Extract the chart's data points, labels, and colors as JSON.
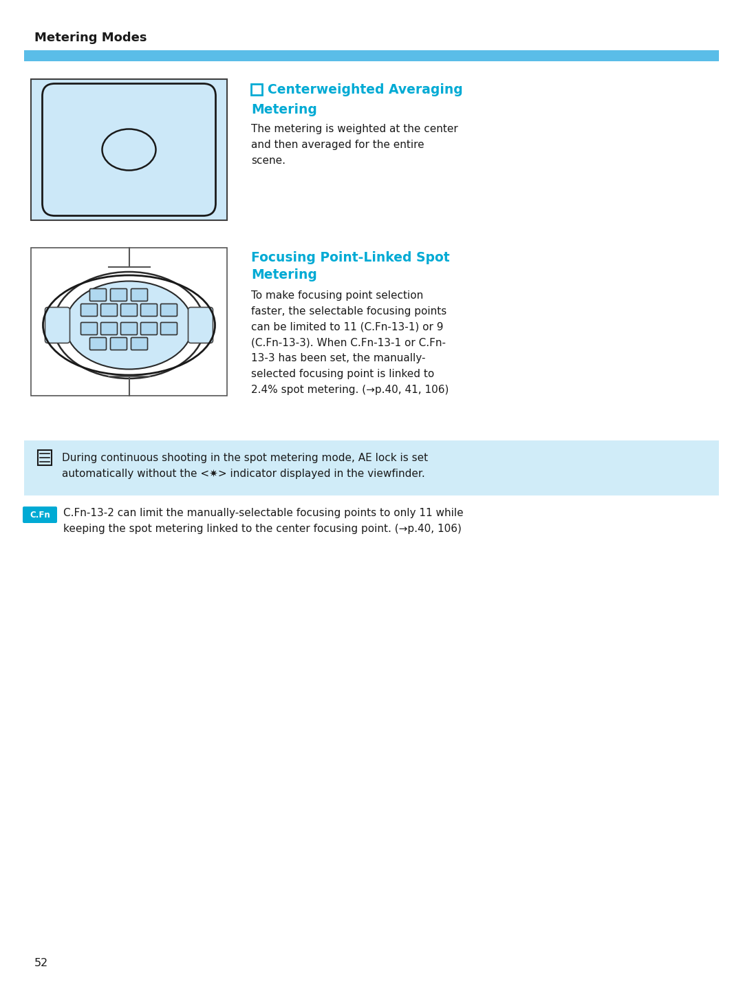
{
  "page_bg": "#ffffff",
  "header_title": "Metering Modes",
  "header_bar_color": "#5abde8",
  "header_title_color": "#1a1a1a",
  "section1_title_color": "#00aad4",
  "section1_body": "The metering is weighted at the center\nand then averaged for the entire\nscene.",
  "section2_title_color": "#00aad4",
  "section2_body": "To make focusing point selection\nfaster, the selectable focusing points\ncan be limited to 11 (C.Fn-13-1) or 9\n(C.Fn-13-3). When C.Fn-13-1 or C.Fn-\n13-3 has been set, the manually-\nselected focusing point is linked to\n2.4% spot metering. (→p.40, 41, 106)",
  "note_bg": "#d0ecf8",
  "note_text": "During continuous shooting in the spot metering mode, AE lock is set\nautomatically without the <✷> indicator displayed in the viewfinder.",
  "cfn_bg": "#00aad4",
  "cfn_label": "C.Fn",
  "cfn_text": "C.Fn-13-2 can limit the manually-selectable focusing points to only 11 while\nkeeping the spot metering linked to the center focusing point. (→p.40, 106)",
  "page_number": "52",
  "diagram1_bg": "#cce8f8",
  "diagram2_bg": "#ffffff",
  "body_color": "#1a1a1a",
  "body_fontsize": 11.0,
  "title_fontsize": 13.5
}
